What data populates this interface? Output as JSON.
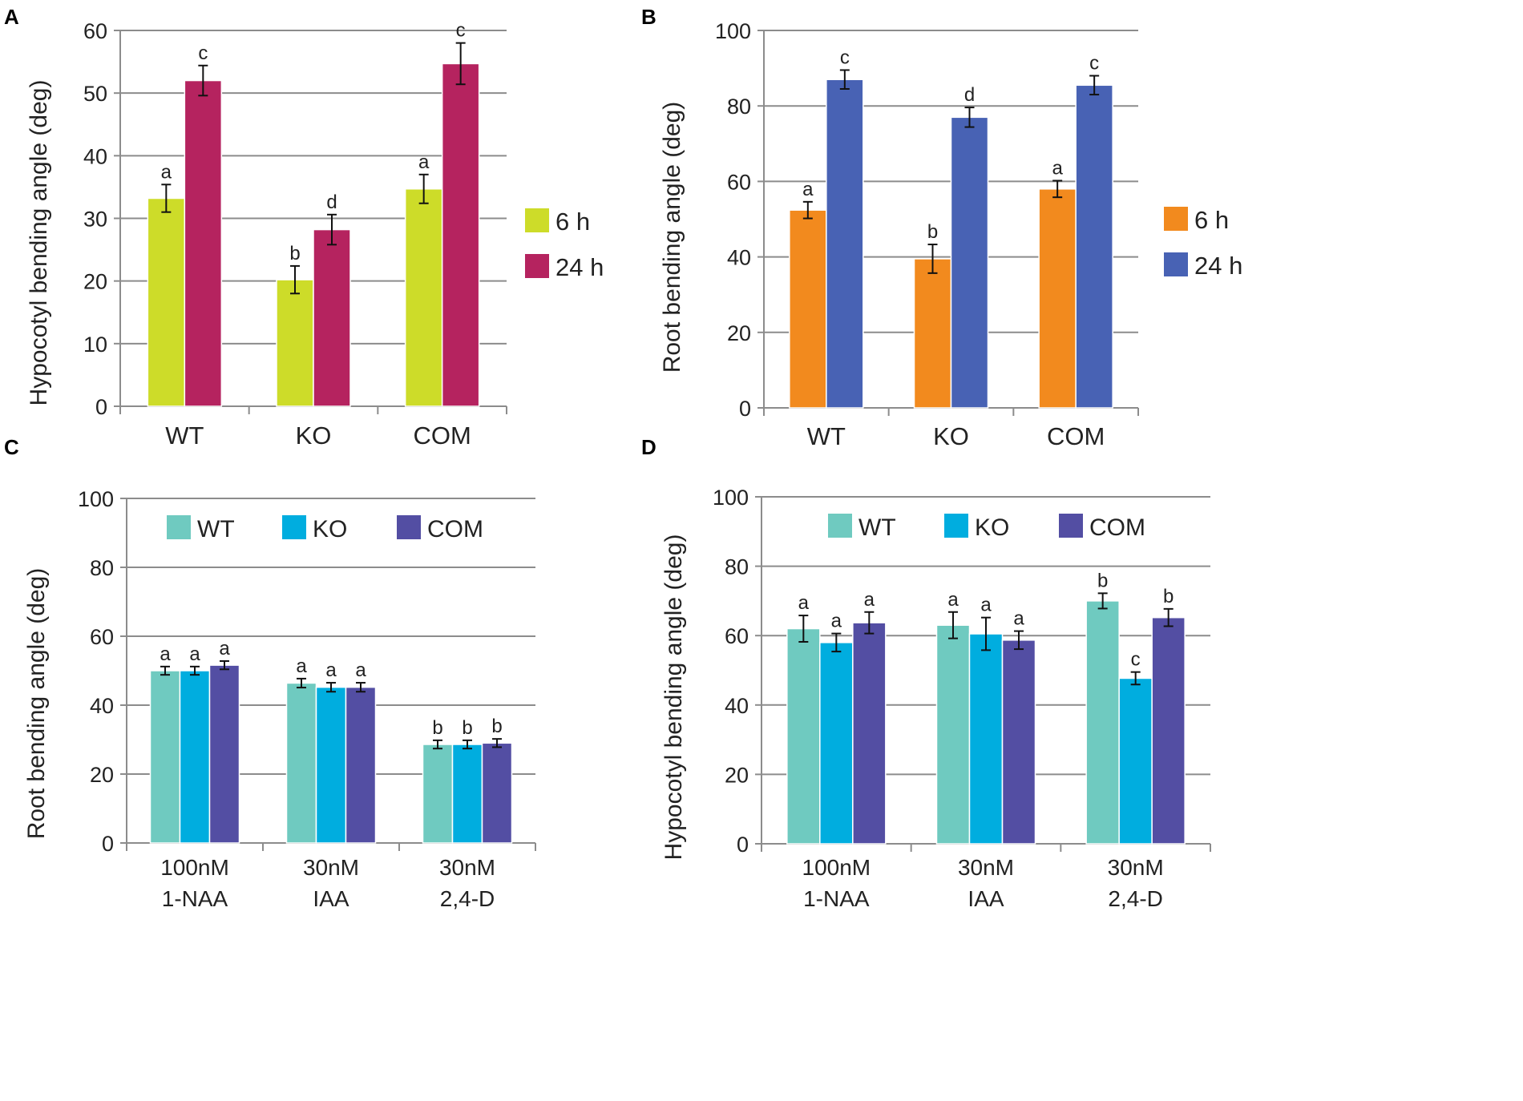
{
  "chart_data": [
    {
      "panel": "A",
      "type": "bar",
      "title": "",
      "xlabel": "",
      "ylabel": "Hypocotyl bending angle (deg)",
      "ylim": [
        0,
        60
      ],
      "yticks": [
        0,
        10,
        20,
        30,
        40,
        50,
        60
      ],
      "grid": true,
      "legend_position": "right",
      "categories": [
        "WT",
        "KO",
        "COM"
      ],
      "series": [
        {
          "name": "6 h",
          "color": "#cddc29",
          "values": [
            33.2,
            20.2,
            34.7
          ],
          "errors": [
            2.2,
            2.2,
            2.3
          ],
          "letters": [
            "a",
            "b",
            "a"
          ]
        },
        {
          "name": "24 h",
          "color": "#b5235f",
          "values": [
            52.0,
            28.2,
            54.7
          ],
          "errors": [
            2.4,
            2.4,
            3.3
          ],
          "letters": [
            "c",
            "d",
            "c"
          ]
        }
      ]
    },
    {
      "panel": "B",
      "type": "bar",
      "title": "",
      "xlabel": "",
      "ylabel": "Root bending angle (deg)",
      "ylim": [
        0,
        100
      ],
      "yticks": [
        0,
        20,
        40,
        60,
        80,
        100
      ],
      "grid": true,
      "legend_position": "right",
      "categories": [
        "WT",
        "KO",
        "COM"
      ],
      "series": [
        {
          "name": "6 h",
          "color": "#f28a1e",
          "values": [
            52.4,
            39.5,
            58.0
          ],
          "errors": [
            2.2,
            3.8,
            2.2
          ],
          "letters": [
            "a",
            "b",
            "a"
          ]
        },
        {
          "name": "24 h",
          "color": "#4862b4",
          "values": [
            87.0,
            77.0,
            85.5
          ],
          "errors": [
            2.5,
            2.6,
            2.5
          ],
          "letters": [
            "c",
            "d",
            "c"
          ]
        }
      ]
    },
    {
      "panel": "C",
      "type": "bar",
      "title": "",
      "xlabel": "",
      "ylabel": "Root bending angle (deg)",
      "ylim": [
        0,
        100
      ],
      "yticks": [
        0,
        20,
        40,
        60,
        80,
        100
      ],
      "grid": true,
      "legend_position": "top",
      "categories": [
        [
          "100nM",
          "1-NAA"
        ],
        [
          "30nM",
          "IAA"
        ],
        [
          "30nM",
          "2,4-D"
        ]
      ],
      "series": [
        {
          "name": "WT",
          "color": "#6fcac0",
          "values": [
            50.0,
            46.4,
            28.6
          ],
          "errors": [
            1.2,
            1.3,
            1.2
          ],
          "letters": [
            "a",
            "a",
            "b"
          ]
        },
        {
          "name": "KO",
          "color": "#00addf",
          "values": [
            50.0,
            45.2,
            28.6
          ],
          "errors": [
            1.2,
            1.3,
            1.2
          ],
          "letters": [
            "a",
            "a",
            "b"
          ]
        },
        {
          "name": "COM",
          "color": "#534ea3",
          "values": [
            51.6,
            45.2,
            29.0
          ],
          "errors": [
            1.2,
            1.3,
            1.2
          ],
          "letters": [
            "a",
            "a",
            "b"
          ]
        }
      ]
    },
    {
      "panel": "D",
      "type": "bar",
      "title": "",
      "xlabel": "",
      "ylabel": "Hypocotyl bending angle  (deg)",
      "ylim": [
        0,
        100
      ],
      "yticks": [
        0,
        20,
        40,
        60,
        80,
        100
      ],
      "grid": true,
      "legend_position": "top",
      "categories": [
        [
          "100nM",
          "1-NAA"
        ],
        [
          "30nM",
          "IAA"
        ],
        [
          "30nM",
          "2,4-D"
        ]
      ],
      "series": [
        {
          "name": "WT",
          "color": "#6fcac0",
          "values": [
            62.0,
            63.0,
            70.0
          ],
          "errors": [
            3.8,
            3.8,
            2.2
          ],
          "letters": [
            "a",
            "a",
            "b"
          ]
        },
        {
          "name": "KO",
          "color": "#00addf",
          "values": [
            58.0,
            60.5,
            47.7
          ],
          "errors": [
            2.6,
            4.7,
            1.8
          ],
          "letters": [
            "a",
            "a",
            "c"
          ]
        },
        {
          "name": "COM",
          "color": "#534ea3",
          "values": [
            63.7,
            58.7,
            65.2
          ],
          "errors": [
            3.1,
            2.6,
            2.5
          ],
          "letters": [
            "a",
            "a",
            "b"
          ]
        }
      ]
    }
  ]
}
